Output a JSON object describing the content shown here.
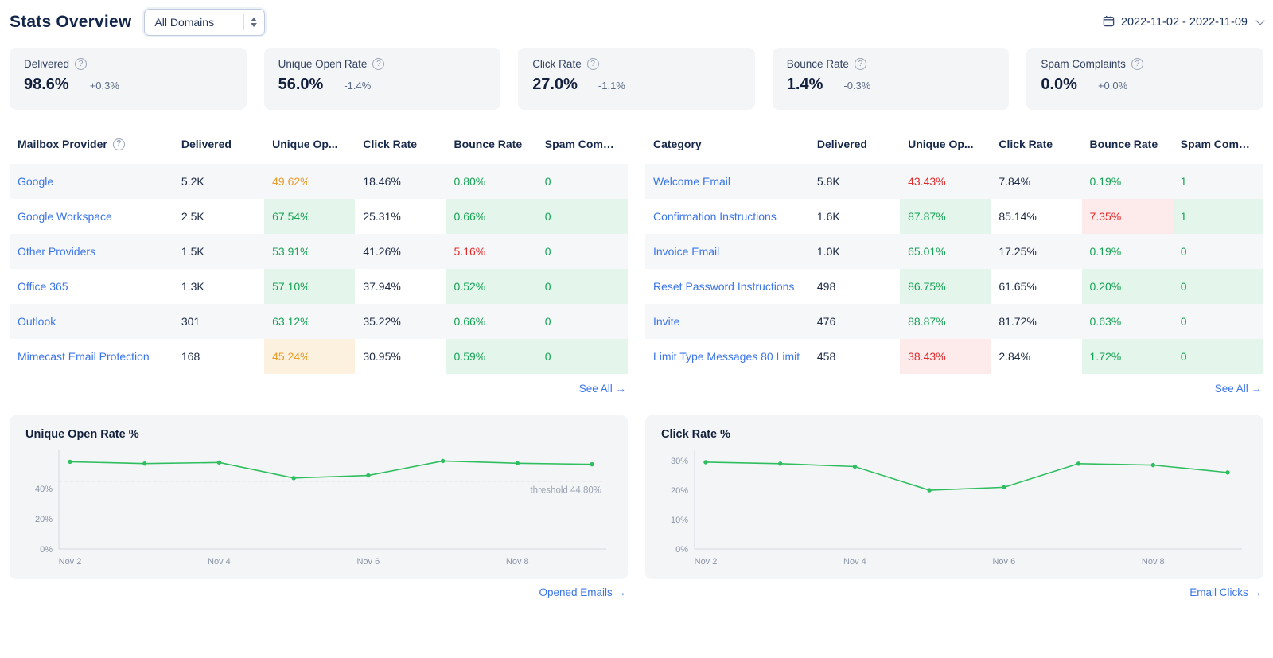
{
  "header": {
    "title": "Stats Overview",
    "domain_select_value": "All Domains",
    "date_range": "2022-11-02 - 2022-11-09"
  },
  "kpis": [
    {
      "label": "Delivered",
      "value": "98.6%",
      "delta": "+0.3%"
    },
    {
      "label": "Unique Open Rate",
      "value": "56.0%",
      "delta": "-1.4%"
    },
    {
      "label": "Click Rate",
      "value": "27.0%",
      "delta": "-1.1%"
    },
    {
      "label": "Bounce Rate",
      "value": "1.4%",
      "delta": "-0.3%"
    },
    {
      "label": "Spam Complaints",
      "value": "0.0%",
      "delta": "+0.0%"
    }
  ],
  "tables": [
    {
      "name_header": "Mailbox Provider",
      "columns": [
        "Delivered",
        "Unique Op...",
        "Click Rate",
        "Bounce Rate",
        "Spam Compl..."
      ],
      "rows": [
        {
          "name": "Google",
          "cells": [
            {
              "text": "5.2K"
            },
            {
              "text": "49.62%",
              "tone": "orange"
            },
            {
              "text": "18.46%"
            },
            {
              "text": "0.80%",
              "tone": "green"
            },
            {
              "text": "0",
              "tone": "green"
            }
          ]
        },
        {
          "name": "Google Workspace",
          "cells": [
            {
              "text": "2.5K"
            },
            {
              "text": "67.54%",
              "tone": "green"
            },
            {
              "text": "25.31%"
            },
            {
              "text": "0.66%",
              "tone": "green"
            },
            {
              "text": "0",
              "tone": "green"
            }
          ]
        },
        {
          "name": "Other Providers",
          "cells": [
            {
              "text": "1.5K"
            },
            {
              "text": "53.91%",
              "tone": "green"
            },
            {
              "text": "41.26%"
            },
            {
              "text": "5.16%",
              "tone": "red"
            },
            {
              "text": "0",
              "tone": "green"
            }
          ]
        },
        {
          "name": "Office 365",
          "cells": [
            {
              "text": "1.3K"
            },
            {
              "text": "57.10%",
              "tone": "green"
            },
            {
              "text": "37.94%"
            },
            {
              "text": "0.52%",
              "tone": "green"
            },
            {
              "text": "0",
              "tone": "green"
            }
          ]
        },
        {
          "name": "Outlook",
          "cells": [
            {
              "text": "301"
            },
            {
              "text": "63.12%",
              "tone": "green"
            },
            {
              "text": "35.22%"
            },
            {
              "text": "0.66%",
              "tone": "green"
            },
            {
              "text": "0",
              "tone": "green"
            }
          ]
        },
        {
          "name": "Mimecast Email Protection",
          "cells": [
            {
              "text": "168"
            },
            {
              "text": "45.24%",
              "tone": "orange"
            },
            {
              "text": "30.95%"
            },
            {
              "text": "0.59%",
              "tone": "green"
            },
            {
              "text": "0",
              "tone": "green"
            }
          ]
        }
      ],
      "see_all": "See All →"
    },
    {
      "name_header": "Category",
      "columns": [
        "Delivered",
        "Unique Op...",
        "Click Rate",
        "Bounce Rate",
        "Spam Compl..."
      ],
      "rows": [
        {
          "name": "Welcome Email",
          "cells": [
            {
              "text": "5.8K"
            },
            {
              "text": "43.43%",
              "tone": "red"
            },
            {
              "text": "7.84%"
            },
            {
              "text": "0.19%",
              "tone": "green"
            },
            {
              "text": "1",
              "tone": "green"
            }
          ]
        },
        {
          "name": "Confirmation Instructions",
          "cells": [
            {
              "text": "1.6K"
            },
            {
              "text": "87.87%",
              "tone": "green"
            },
            {
              "text": "85.14%"
            },
            {
              "text": "7.35%",
              "tone": "red"
            },
            {
              "text": "1",
              "tone": "green"
            }
          ]
        },
        {
          "name": "Invoice Email",
          "cells": [
            {
              "text": "1.0K"
            },
            {
              "text": "65.01%",
              "tone": "green"
            },
            {
              "text": "17.25%"
            },
            {
              "text": "0.19%",
              "tone": "green"
            },
            {
              "text": "0",
              "tone": "green"
            }
          ]
        },
        {
          "name": "Reset Password Instructions",
          "cells": [
            {
              "text": "498"
            },
            {
              "text": "86.75%",
              "tone": "green"
            },
            {
              "text": "61.65%"
            },
            {
              "text": "0.20%",
              "tone": "green"
            },
            {
              "text": "0",
              "tone": "green"
            }
          ]
        },
        {
          "name": "Invite",
          "cells": [
            {
              "text": "476"
            },
            {
              "text": "88.87%",
              "tone": "green"
            },
            {
              "text": "81.72%"
            },
            {
              "text": "0.63%",
              "tone": "green"
            },
            {
              "text": "0",
              "tone": "green"
            }
          ]
        },
        {
          "name": "Limit Type Messages 80 Limit",
          "cells": [
            {
              "text": "458"
            },
            {
              "text": "38.43%",
              "tone": "red"
            },
            {
              "text": "2.84%"
            },
            {
              "text": "1.72%",
              "tone": "green"
            },
            {
              "text": "0",
              "tone": "green"
            }
          ]
        }
      ],
      "see_all": "See All →"
    }
  ],
  "chart_data": [
    {
      "type": "line",
      "title": "Unique Open Rate %",
      "x": [
        "Nov 2",
        "Nov 3",
        "Nov 4",
        "Nov 5",
        "Nov 6",
        "Nov 7",
        "Nov 8",
        "Nov 9"
      ],
      "x_tick_step": 2,
      "series": [
        {
          "name": "Unique Open Rate %",
          "values": [
            57.5,
            56.3,
            57.0,
            46.8,
            48.5,
            58.0,
            56.5,
            55.8
          ]
        }
      ],
      "ylim": [
        0,
        64
      ],
      "yticks": [
        0,
        20,
        40
      ],
      "threshold": {
        "value": 44.8,
        "label": "threshold 44.80%"
      },
      "grid": false,
      "legend": false,
      "line_color": "#2fbe5f",
      "footer_link": "Opened Emails →"
    },
    {
      "type": "line",
      "title": "Click Rate %",
      "x": [
        "Nov 2",
        "Nov 3",
        "Nov 4",
        "Nov 5",
        "Nov 6",
        "Nov 7",
        "Nov 8",
        "Nov 9"
      ],
      "x_tick_step": 2,
      "series": [
        {
          "name": "Click Rate %",
          "values": [
            29.5,
            29.0,
            28.0,
            20.0,
            21.0,
            29.0,
            28.5,
            26.0
          ]
        }
      ],
      "ylim": [
        0,
        33
      ],
      "yticks": [
        0,
        10,
        20,
        30
      ],
      "threshold": null,
      "grid": false,
      "legend": false,
      "line_color": "#2fbe5f",
      "footer_link": "Email Clicks →"
    }
  ],
  "colors": {
    "accent_blue": "#3b76e8",
    "positive_green": "#17a355",
    "negative_red": "#e02b2b",
    "warning_orange": "#ea9b28",
    "chart_line_green": "#2fbe5f",
    "card_bg": "#f4f5f7"
  }
}
